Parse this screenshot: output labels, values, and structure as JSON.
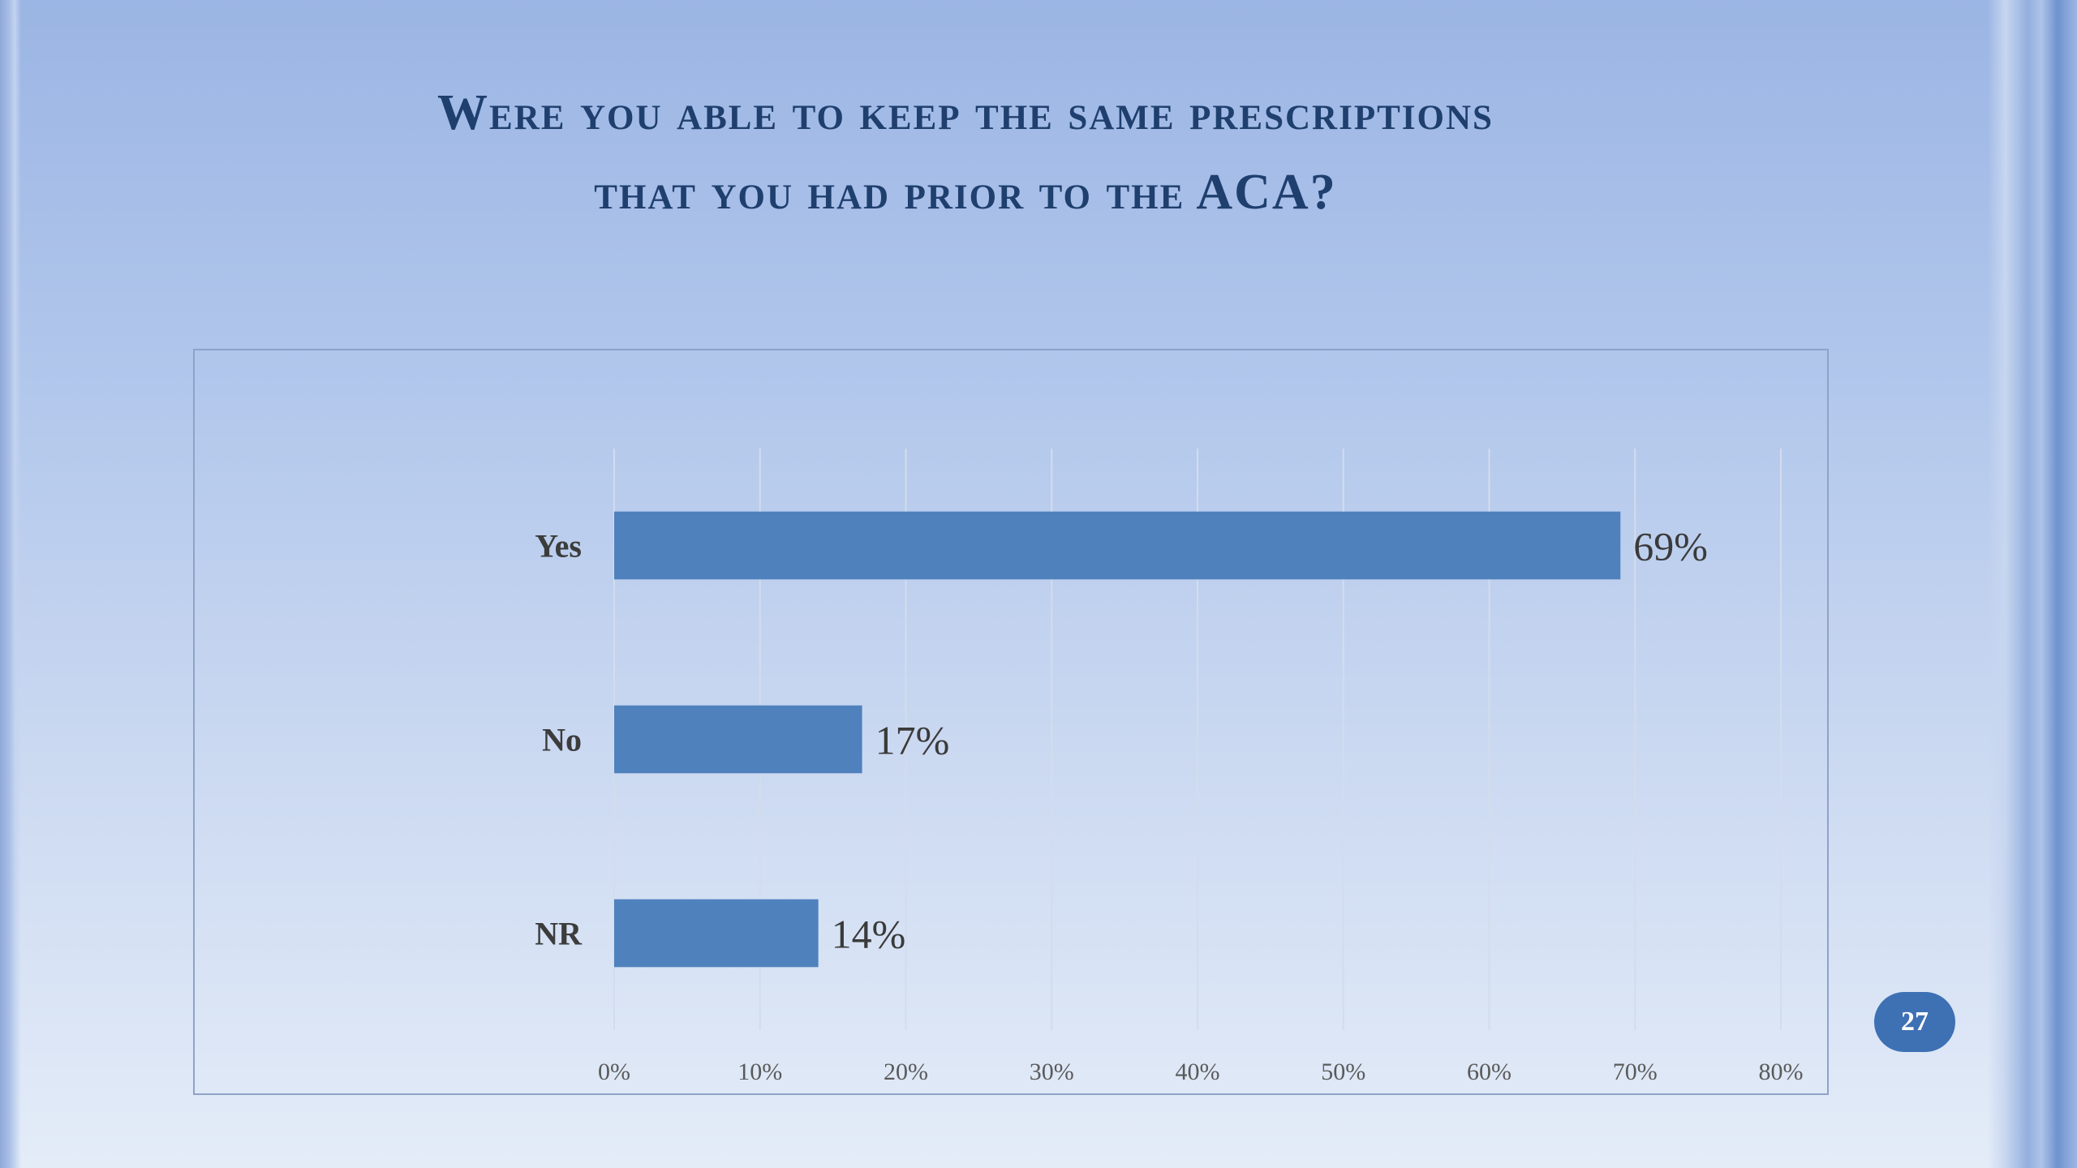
{
  "slide": {
    "title_line1": "Were you able to keep the same prescriptions",
    "title_line2": "that you had prior to the ACA?",
    "page_number": "27",
    "colors": {
      "bar": "#4f81bd",
      "title": "#1f3f6e",
      "badge": "#3e70b4"
    }
  },
  "chart_data": {
    "type": "bar",
    "orientation": "horizontal",
    "categories": [
      "Yes",
      "No",
      "NR"
    ],
    "values": [
      69,
      17,
      14
    ],
    "data_labels": [
      "69%",
      "17%",
      "14%"
    ],
    "xlim": [
      0,
      80
    ],
    "x_ticks": [
      "0%",
      "10%",
      "20%",
      "30%",
      "40%",
      "50%",
      "60%",
      "70%",
      "80%"
    ],
    "grid": true,
    "legend": "none",
    "title": "",
    "xlabel": "",
    "ylabel": ""
  }
}
